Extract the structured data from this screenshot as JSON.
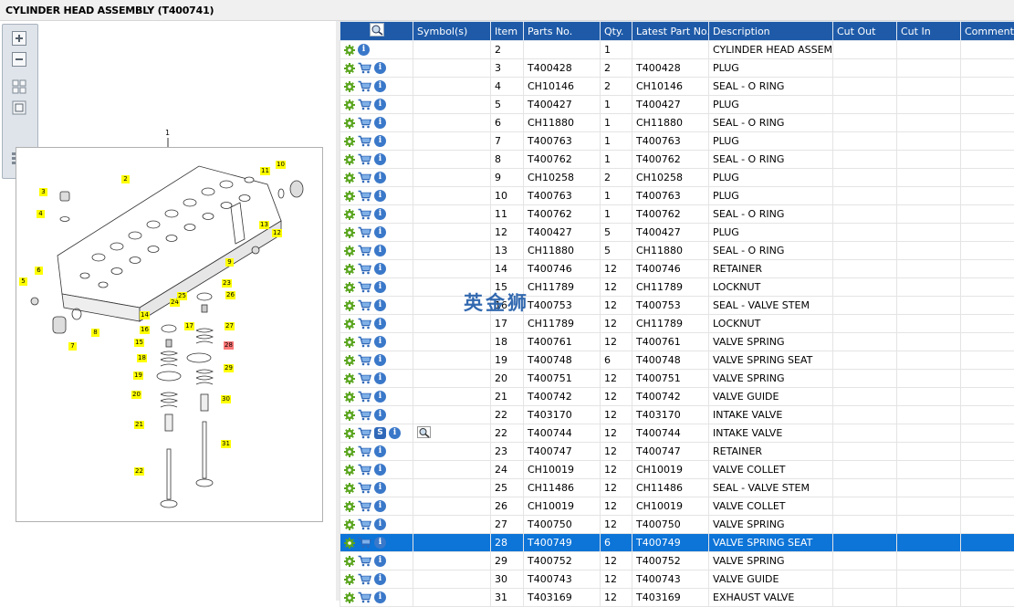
{
  "title": "CYLINDER HEAD ASSEMBLY (T400741)",
  "watermark": "英金狮",
  "colors": {
    "header_bg": "#1e5aa8",
    "selected_row_bg": "#0d74d8",
    "callout_bg": "#ffff00",
    "callout_highlight_bg": "#ff7777"
  },
  "toolbar": {
    "buttons": [
      "zoom-in-icon",
      "zoom-out-icon",
      "fit-all-icon",
      "fit-window-icon",
      "toggle-list-icon"
    ]
  },
  "drawing": {
    "assembly_label": "1",
    "callouts": [
      {
        "num": "2"
      },
      {
        "num": "3"
      },
      {
        "num": "4"
      },
      {
        "num": "5"
      },
      {
        "num": "6"
      },
      {
        "num": "7"
      },
      {
        "num": "8"
      },
      {
        "num": "9"
      },
      {
        "num": "10"
      },
      {
        "num": "11"
      },
      {
        "num": "12"
      },
      {
        "num": "13"
      },
      {
        "num": "14"
      },
      {
        "num": "15"
      },
      {
        "num": "16"
      },
      {
        "num": "17"
      },
      {
        "num": "18"
      },
      {
        "num": "19"
      },
      {
        "num": "20"
      },
      {
        "num": "21"
      },
      {
        "num": "22"
      },
      {
        "num": "23"
      },
      {
        "num": "24"
      },
      {
        "num": "25"
      },
      {
        "num": "26"
      },
      {
        "num": "27"
      },
      {
        "num": "28",
        "highlight": true
      },
      {
        "num": "29"
      },
      {
        "num": "30"
      },
      {
        "num": "31"
      }
    ]
  },
  "grid": {
    "columns": [
      "",
      "Symbol(s)",
      "Item",
      "Parts No.",
      "Qty.",
      "Latest Part No.",
      "Description",
      "Cut Out",
      "Cut In",
      "Comment"
    ],
    "rows": [
      {
        "item": "2",
        "part": "",
        "qty": "1",
        "latest": "",
        "desc": "CYLINDER HEAD ASSEMBLY",
        "cart": false
      },
      {
        "item": "3",
        "part": "T400428",
        "qty": "2",
        "latest": "T400428",
        "desc": "PLUG"
      },
      {
        "item": "4",
        "part": "CH10146",
        "qty": "2",
        "latest": "CH10146",
        "desc": "SEAL - O RING"
      },
      {
        "item": "5",
        "part": "T400427",
        "qty": "1",
        "latest": "T400427",
        "desc": "PLUG"
      },
      {
        "item": "6",
        "part": "CH11880",
        "qty": "1",
        "latest": "CH11880",
        "desc": "SEAL - O RING"
      },
      {
        "item": "7",
        "part": "T400763",
        "qty": "1",
        "latest": "T400763",
        "desc": "PLUG"
      },
      {
        "item": "8",
        "part": "T400762",
        "qty": "1",
        "latest": "T400762",
        "desc": "SEAL - O RING"
      },
      {
        "item": "9",
        "part": "CH10258",
        "qty": "2",
        "latest": "CH10258",
        "desc": "PLUG"
      },
      {
        "item": "10",
        "part": "T400763",
        "qty": "1",
        "latest": "T400763",
        "desc": "PLUG"
      },
      {
        "item": "11",
        "part": "T400762",
        "qty": "1",
        "latest": "T400762",
        "desc": "SEAL - O RING"
      },
      {
        "item": "12",
        "part": "T400427",
        "qty": "5",
        "latest": "T400427",
        "desc": "PLUG"
      },
      {
        "item": "13",
        "part": "CH11880",
        "qty": "5",
        "latest": "CH11880",
        "desc": "SEAL - O RING"
      },
      {
        "item": "14",
        "part": "T400746",
        "qty": "12",
        "latest": "T400746",
        "desc": "RETAINER"
      },
      {
        "item": "15",
        "part": "CH11789",
        "qty": "12",
        "latest": "CH11789",
        "desc": "LOCKNUT"
      },
      {
        "item": "16",
        "part": "T400753",
        "qty": "12",
        "latest": "T400753",
        "desc": "SEAL - VALVE STEM"
      },
      {
        "item": "17",
        "part": "CH11789",
        "qty": "12",
        "latest": "CH11789",
        "desc": "LOCKNUT"
      },
      {
        "item": "18",
        "part": "T400761",
        "qty": "12",
        "latest": "T400761",
        "desc": "VALVE SPRING"
      },
      {
        "item": "19",
        "part": "T400748",
        "qty": "6",
        "latest": "T400748",
        "desc": "VALVE SPRING SEAT"
      },
      {
        "item": "20",
        "part": "T400751",
        "qty": "12",
        "latest": "T400751",
        "desc": "VALVE SPRING"
      },
      {
        "item": "21",
        "part": "T400742",
        "qty": "12",
        "latest": "T400742",
        "desc": "VALVE GUIDE"
      },
      {
        "item": "22",
        "part": "T403170",
        "qty": "12",
        "latest": "T403170",
        "desc": "INTAKE VALVE"
      },
      {
        "item": "22",
        "part": "T400744",
        "qty": "12",
        "latest": "T400744",
        "desc": "INTAKE VALVE",
        "symbol": "S",
        "magnifier": true
      },
      {
        "item": "23",
        "part": "T400747",
        "qty": "12",
        "latest": "T400747",
        "desc": "RETAINER"
      },
      {
        "item": "24",
        "part": "CH10019",
        "qty": "12",
        "latest": "CH10019",
        "desc": "VALVE COLLET"
      },
      {
        "item": "25",
        "part": "CH11486",
        "qty": "12",
        "latest": "CH11486",
        "desc": "SEAL - VALVE STEM"
      },
      {
        "item": "26",
        "part": "CH10019",
        "qty": "12",
        "latest": "CH10019",
        "desc": "VALVE COLLET"
      },
      {
        "item": "27",
        "part": "T400750",
        "qty": "12",
        "latest": "T400750",
        "desc": "VALVE SPRING"
      },
      {
        "item": "28",
        "part": "T400749",
        "qty": "6",
        "latest": "T400749",
        "desc": "VALVE SPRING SEAT",
        "selected": true
      },
      {
        "item": "29",
        "part": "T400752",
        "qty": "12",
        "latest": "T400752",
        "desc": "VALVE SPRING"
      },
      {
        "item": "30",
        "part": "T400743",
        "qty": "12",
        "latest": "T400743",
        "desc": "VALVE GUIDE"
      },
      {
        "item": "31",
        "part": "T403169",
        "qty": "12",
        "latest": "T403169",
        "desc": "EXHAUST VALVE"
      }
    ]
  }
}
